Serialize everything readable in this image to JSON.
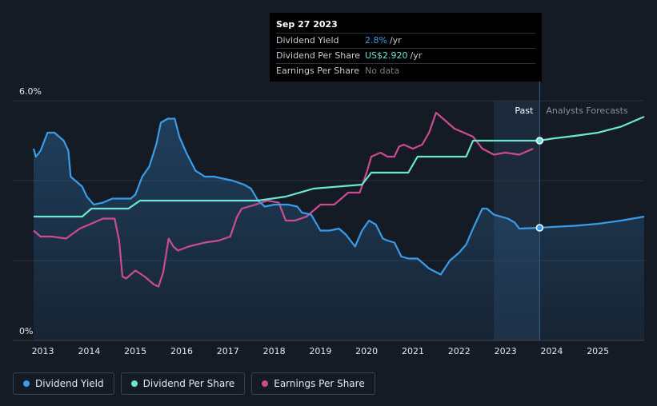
{
  "tooltip": {
    "date": "Sep 27 2023",
    "rows": [
      {
        "label": "Dividend Yield",
        "value": "2.8%",
        "unit": "/yr",
        "color": "#3a9ce8"
      },
      {
        "label": "Dividend Per Share",
        "value": "US$2.920",
        "unit": "/yr",
        "color": "#6be6d0"
      },
      {
        "label": "Earnings Per Share",
        "value": "No data",
        "unit": "",
        "color": "#7a7f88"
      }
    ]
  },
  "chart_data": {
    "type": "line",
    "y_tick_labels": [
      "6.0%",
      "0%"
    ],
    "ylim": [
      0,
      6
    ],
    "xlim": [
      2012.35,
      2026.0
    ],
    "x_ticks": [
      2013,
      2014,
      2015,
      2016,
      2017,
      2018,
      2019,
      2020,
      2021,
      2022,
      2023,
      2024,
      2025
    ],
    "past_label": "Past",
    "forecast_label": "Analysts Forecasts",
    "past_region": [
      2022.75,
      2023.74
    ],
    "cursor_x": 2023.74,
    "grid": true,
    "colors": {
      "dividend_yield": "#3a9ce8",
      "dividend_per_share": "#6be6d0",
      "earnings_per_share": "#cc4b91"
    },
    "series": [
      {
        "name": "Dividend Yield",
        "key": "dividend_yield",
        "points": [
          [
            2012.8,
            4.8
          ],
          [
            2012.85,
            4.6
          ],
          [
            2012.95,
            4.75
          ],
          [
            2013.1,
            5.2
          ],
          [
            2013.25,
            5.2
          ],
          [
            2013.45,
            5.0
          ],
          [
            2013.55,
            4.75
          ],
          [
            2013.6,
            4.1
          ],
          [
            2013.7,
            4.0
          ],
          [
            2013.85,
            3.85
          ],
          [
            2013.95,
            3.6
          ],
          [
            2014.1,
            3.4
          ],
          [
            2014.3,
            3.45
          ],
          [
            2014.5,
            3.55
          ],
          [
            2014.7,
            3.55
          ],
          [
            2014.9,
            3.55
          ],
          [
            2015.0,
            3.65
          ],
          [
            2015.15,
            4.1
          ],
          [
            2015.3,
            4.35
          ],
          [
            2015.45,
            4.9
          ],
          [
            2015.55,
            5.45
          ],
          [
            2015.7,
            5.55
          ],
          [
            2015.85,
            5.55
          ],
          [
            2015.95,
            5.1
          ],
          [
            2016.1,
            4.7
          ],
          [
            2016.3,
            4.25
          ],
          [
            2016.5,
            4.1
          ],
          [
            2016.7,
            4.1
          ],
          [
            2016.9,
            4.05
          ],
          [
            2017.1,
            4.0
          ],
          [
            2017.35,
            3.9
          ],
          [
            2017.5,
            3.8
          ],
          [
            2017.65,
            3.5
          ],
          [
            2017.8,
            3.35
          ],
          [
            2018.0,
            3.4
          ],
          [
            2018.3,
            3.4
          ],
          [
            2018.5,
            3.35
          ],
          [
            2018.6,
            3.2
          ],
          [
            2018.8,
            3.15
          ],
          [
            2018.9,
            2.95
          ],
          [
            2019.0,
            2.75
          ],
          [
            2019.2,
            2.75
          ],
          [
            2019.4,
            2.8
          ],
          [
            2019.55,
            2.65
          ],
          [
            2019.75,
            2.35
          ],
          [
            2019.9,
            2.75
          ],
          [
            2020.05,
            3.0
          ],
          [
            2020.2,
            2.9
          ],
          [
            2020.35,
            2.55
          ],
          [
            2020.45,
            2.5
          ],
          [
            2020.6,
            2.45
          ],
          [
            2020.75,
            2.1
          ],
          [
            2020.9,
            2.05
          ],
          [
            2021.1,
            2.05
          ],
          [
            2021.35,
            1.8
          ],
          [
            2021.6,
            1.65
          ],
          [
            2021.8,
            2.0
          ],
          [
            2022.0,
            2.2
          ],
          [
            2022.15,
            2.4
          ],
          [
            2022.3,
            2.8
          ],
          [
            2022.5,
            3.3
          ],
          [
            2022.6,
            3.3
          ],
          [
            2022.75,
            3.15
          ],
          [
            2022.9,
            3.1
          ],
          [
            2023.05,
            3.05
          ],
          [
            2023.2,
            2.95
          ],
          [
            2023.3,
            2.8
          ],
          [
            2023.74,
            2.82
          ]
        ],
        "forecast": [
          [
            2023.74,
            2.82
          ],
          [
            2024.0,
            2.84
          ],
          [
            2024.5,
            2.87
          ],
          [
            2025.0,
            2.92
          ],
          [
            2025.5,
            3.0
          ],
          [
            2026.0,
            3.1
          ]
        ]
      },
      {
        "name": "Dividend Per Share",
        "key": "dividend_per_share",
        "points": [
          [
            2012.8,
            3.1
          ],
          [
            2013.85,
            3.1
          ],
          [
            2014.05,
            3.3
          ],
          [
            2014.85,
            3.3
          ],
          [
            2015.1,
            3.5
          ],
          [
            2017.65,
            3.5
          ],
          [
            2018.25,
            3.6
          ],
          [
            2018.85,
            3.8
          ],
          [
            2019.9,
            3.9
          ],
          [
            2020.1,
            4.2
          ],
          [
            2020.9,
            4.2
          ],
          [
            2021.1,
            4.6
          ],
          [
            2022.15,
            4.6
          ],
          [
            2022.3,
            5.0
          ],
          [
            2023.74,
            5.0
          ]
        ],
        "forecast": [
          [
            2023.74,
            5.0
          ],
          [
            2024.0,
            5.05
          ],
          [
            2024.5,
            5.12
          ],
          [
            2025.0,
            5.2
          ],
          [
            2025.5,
            5.35
          ],
          [
            2026.0,
            5.6
          ]
        ]
      },
      {
        "name": "Earnings Per Share",
        "key": "earnings_per_share",
        "points": [
          [
            2012.8,
            2.75
          ],
          [
            2012.95,
            2.6
          ],
          [
            2013.2,
            2.6
          ],
          [
            2013.5,
            2.55
          ],
          [
            2013.8,
            2.8
          ],
          [
            2014.1,
            2.95
          ],
          [
            2014.3,
            3.05
          ],
          [
            2014.55,
            3.05
          ],
          [
            2014.65,
            2.5
          ],
          [
            2014.72,
            1.6
          ],
          [
            2014.8,
            1.55
          ],
          [
            2015.0,
            1.75
          ],
          [
            2015.2,
            1.6
          ],
          [
            2015.4,
            1.4
          ],
          [
            2015.5,
            1.35
          ],
          [
            2015.6,
            1.7
          ],
          [
            2015.72,
            2.55
          ],
          [
            2015.82,
            2.35
          ],
          [
            2015.92,
            2.25
          ],
          [
            2016.15,
            2.35
          ],
          [
            2016.5,
            2.45
          ],
          [
            2016.8,
            2.5
          ],
          [
            2017.05,
            2.6
          ],
          [
            2017.2,
            3.1
          ],
          [
            2017.3,
            3.3
          ],
          [
            2017.6,
            3.4
          ],
          [
            2017.85,
            3.5
          ],
          [
            2018.1,
            3.45
          ],
          [
            2018.25,
            3.0
          ],
          [
            2018.45,
            3.0
          ],
          [
            2018.7,
            3.1
          ],
          [
            2019.0,
            3.4
          ],
          [
            2019.3,
            3.4
          ],
          [
            2019.6,
            3.7
          ],
          [
            2019.85,
            3.7
          ],
          [
            2020.0,
            4.2
          ],
          [
            2020.1,
            4.6
          ],
          [
            2020.3,
            4.7
          ],
          [
            2020.45,
            4.6
          ],
          [
            2020.6,
            4.6
          ],
          [
            2020.7,
            4.85
          ],
          [
            2020.8,
            4.9
          ],
          [
            2021.0,
            4.8
          ],
          [
            2021.2,
            4.9
          ],
          [
            2021.35,
            5.2
          ],
          [
            2021.5,
            5.7
          ],
          [
            2021.7,
            5.5
          ],
          [
            2021.9,
            5.3
          ],
          [
            2022.1,
            5.2
          ],
          [
            2022.3,
            5.1
          ],
          [
            2022.5,
            4.8
          ],
          [
            2022.75,
            4.65
          ],
          [
            2023.0,
            4.7
          ],
          [
            2023.3,
            4.65
          ],
          [
            2023.6,
            4.8
          ]
        ]
      }
    ]
  },
  "legend": [
    {
      "label": "Dividend Yield",
      "color": "#3a9ce8"
    },
    {
      "label": "Dividend Per Share",
      "color": "#6be6d0"
    },
    {
      "label": "Earnings Per Share",
      "color": "#cc4b91"
    }
  ]
}
